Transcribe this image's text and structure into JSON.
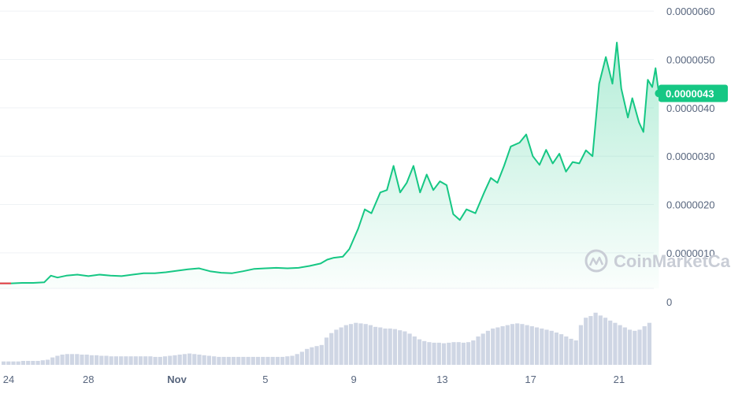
{
  "chart_data": {
    "type": "area",
    "y_axis": {
      "ticks": [
        "0.0000060",
        "0.0000050",
        "0.0000040",
        "0.0000030",
        "0.0000020",
        "0.0000010"
      ],
      "tick_values": [
        6e-06,
        5e-06,
        4e-06,
        3e-06,
        2e-06,
        1e-06
      ],
      "ylim": [
        2e-07,
        6.1e-06
      ],
      "position": "right"
    },
    "x_axis": {
      "ticks": [
        {
          "label": "24",
          "day": 0,
          "bold": false
        },
        {
          "label": "28",
          "day": 4,
          "bold": false
        },
        {
          "label": "Nov",
          "day": 8,
          "bold": true
        },
        {
          "label": "5",
          "day": 12,
          "bold": false
        },
        {
          "label": "9",
          "day": 16,
          "bold": false
        },
        {
          "label": "13",
          "day": 20,
          "bold": false
        },
        {
          "label": "17",
          "day": 24,
          "bold": false
        },
        {
          "label": "21",
          "day": 28,
          "bold": false
        }
      ],
      "xlim": [
        0,
        29.5
      ]
    },
    "price_series": {
      "name": "Price",
      "color": "#16c784",
      "start_color": "#ea3943",
      "points": [
        [
          0.0,
          3.7e-07
        ],
        [
          0.5,
          3.7e-07
        ],
        [
          1.0,
          3.8e-07
        ],
        [
          1.5,
          3.8e-07
        ],
        [
          2.0,
          3.9e-07
        ],
        [
          2.3,
          5.3e-07
        ],
        [
          2.6,
          4.9e-07
        ],
        [
          3.0,
          5.3e-07
        ],
        [
          3.5,
          5.5e-07
        ],
        [
          4.0,
          5.2e-07
        ],
        [
          4.5,
          5.5e-07
        ],
        [
          5.0,
          5.3e-07
        ],
        [
          5.5,
          5.2e-07
        ],
        [
          6.0,
          5.5e-07
        ],
        [
          6.5,
          5.8e-07
        ],
        [
          7.0,
          5.8e-07
        ],
        [
          7.5,
          6e-07
        ],
        [
          8.0,
          6.3e-07
        ],
        [
          8.5,
          6.6e-07
        ],
        [
          9.0,
          6.8e-07
        ],
        [
          9.5,
          6.2e-07
        ],
        [
          10.0,
          5.9e-07
        ],
        [
          10.5,
          5.8e-07
        ],
        [
          11.0,
          6.2e-07
        ],
        [
          11.5,
          6.7e-07
        ],
        [
          12.0,
          6.8e-07
        ],
        [
          12.5,
          6.9e-07
        ],
        [
          13.0,
          6.8e-07
        ],
        [
          13.5,
          6.9e-07
        ],
        [
          14.0,
          7.3e-07
        ],
        [
          14.5,
          7.8e-07
        ],
        [
          14.8,
          8.6e-07
        ],
        [
          15.1,
          9e-07
        ],
        [
          15.5,
          9.2e-07
        ],
        [
          15.8,
          1.08e-06
        ],
        [
          16.2,
          1.5e-06
        ],
        [
          16.5,
          1.9e-06
        ],
        [
          16.8,
          1.82e-06
        ],
        [
          17.2,
          2.25e-06
        ],
        [
          17.5,
          2.3e-06
        ],
        [
          17.8,
          2.8e-06
        ],
        [
          18.1,
          2.25e-06
        ],
        [
          18.4,
          2.45e-06
        ],
        [
          18.7,
          2.8e-06
        ],
        [
          19.0,
          2.25e-06
        ],
        [
          19.3,
          2.62e-06
        ],
        [
          19.6,
          2.3e-06
        ],
        [
          19.9,
          2.48e-06
        ],
        [
          20.2,
          2.4e-06
        ],
        [
          20.5,
          1.8e-06
        ],
        [
          20.8,
          1.68e-06
        ],
        [
          21.1,
          1.9e-06
        ],
        [
          21.5,
          1.82e-06
        ],
        [
          21.9,
          2.25e-06
        ],
        [
          22.2,
          2.55e-06
        ],
        [
          22.5,
          2.45e-06
        ],
        [
          22.8,
          2.8e-06
        ],
        [
          23.1,
          3.2e-06
        ],
        [
          23.5,
          3.28e-06
        ],
        [
          23.8,
          3.45e-06
        ],
        [
          24.1,
          3e-06
        ],
        [
          24.4,
          2.82e-06
        ],
        [
          24.7,
          3.13e-06
        ],
        [
          25.0,
          2.85e-06
        ],
        [
          25.3,
          3.05e-06
        ],
        [
          25.6,
          2.68e-06
        ],
        [
          25.9,
          2.88e-06
        ],
        [
          26.2,
          2.85e-06
        ],
        [
          26.5,
          3.12e-06
        ],
        [
          26.8,
          3e-06
        ],
        [
          27.1,
          4.5e-06
        ],
        [
          27.4,
          5.05e-06
        ],
        [
          27.7,
          4.5e-06
        ],
        [
          27.9,
          5.35e-06
        ],
        [
          28.1,
          4.4e-06
        ],
        [
          28.4,
          3.8e-06
        ],
        [
          28.6,
          4.2e-06
        ],
        [
          28.9,
          3.7e-06
        ],
        [
          29.1,
          3.5e-06
        ],
        [
          29.3,
          4.58e-06
        ],
        [
          29.5,
          4.43e-06
        ],
        [
          29.65,
          4.82e-06
        ],
        [
          29.8,
          4.3e-06
        ]
      ]
    },
    "volume_series": {
      "name": "Volume",
      "color": "#cfd6e4",
      "values": [
        0.06,
        0.06,
        0.06,
        0.06,
        0.07,
        0.07,
        0.07,
        0.07,
        0.08,
        0.09,
        0.13,
        0.16,
        0.18,
        0.19,
        0.19,
        0.19,
        0.18,
        0.18,
        0.17,
        0.17,
        0.16,
        0.16,
        0.15,
        0.15,
        0.15,
        0.15,
        0.15,
        0.15,
        0.15,
        0.15,
        0.15,
        0.14,
        0.14,
        0.15,
        0.16,
        0.17,
        0.18,
        0.19,
        0.2,
        0.19,
        0.18,
        0.17,
        0.16,
        0.15,
        0.14,
        0.14,
        0.14,
        0.14,
        0.14,
        0.14,
        0.14,
        0.14,
        0.14,
        0.14,
        0.14,
        0.14,
        0.14,
        0.14,
        0.15,
        0.16,
        0.19,
        0.23,
        0.28,
        0.31,
        0.33,
        0.35,
        0.48,
        0.56,
        0.62,
        0.66,
        0.7,
        0.72,
        0.74,
        0.73,
        0.72,
        0.7,
        0.67,
        0.66,
        0.64,
        0.64,
        0.63,
        0.61,
        0.59,
        0.55,
        0.5,
        0.45,
        0.42,
        0.4,
        0.39,
        0.39,
        0.38,
        0.39,
        0.4,
        0.4,
        0.39,
        0.4,
        0.43,
        0.5,
        0.55,
        0.6,
        0.64,
        0.66,
        0.68,
        0.7,
        0.72,
        0.73,
        0.72,
        0.7,
        0.68,
        0.66,
        0.64,
        0.62,
        0.6,
        0.57,
        0.54,
        0.5,
        0.46,
        0.43,
        0.7,
        0.83,
        0.86,
        0.92,
        0.87,
        0.83,
        0.78,
        0.74,
        0.7,
        0.66,
        0.62,
        0.6,
        0.62,
        0.68,
        0.74
      ]
    },
    "current_price": {
      "label": "0.0000043",
      "value": 4.3e-06
    },
    "volume_axis": {
      "label": "0"
    }
  },
  "watermark": {
    "text": "CoinMarketCap"
  }
}
